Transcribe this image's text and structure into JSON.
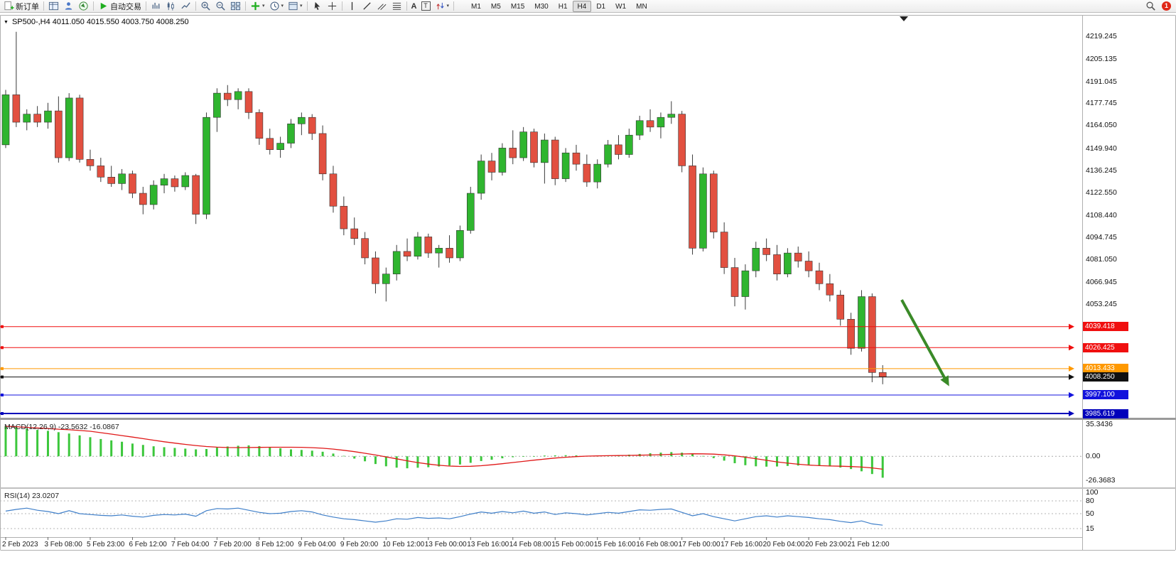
{
  "colors": {
    "toolbar_bg": "#f0f0f0",
    "chart_bg": "#ffffff",
    "border": "#b0b0b0",
    "candle_up": "#2fb52f",
    "candle_down": "#e25040",
    "wick": "#3a3a3a",
    "macd_bar": "#3cc73c",
    "macd_signal": "#e01818",
    "rsi_line": "#3f7fc9",
    "level_red": "#f00f0f",
    "level_orange": "#ff9900",
    "level_blue": "#1212dd",
    "level_blue_bold": "#0000bb",
    "price_line": "#101010",
    "arrow_green": "#3a8a28",
    "axis_text": "#111111",
    "badge_red": "#e02818",
    "autotrade_green": "#1fae1f"
  },
  "toolbar": {
    "new_order_label": "新订单",
    "autotrade_label": "自动交易",
    "text_tool_glyph": "A",
    "label_tool_glyph": "T",
    "timeframes": [
      "M1",
      "M5",
      "M15",
      "M30",
      "H1",
      "H4",
      "D1",
      "W1",
      "MN"
    ],
    "active_timeframe": "H4",
    "notification_count": "1"
  },
  "chart": {
    "title": "SP500-,H4 4011.050 4015.550 4003.750 4008.250",
    "symbol": "SP500-",
    "period": "H4",
    "ohlc_current": {
      "open": "4011.050",
      "high": "4015.550",
      "low": "4003.750",
      "close": "4008.250"
    }
  },
  "indicators": {
    "macd_label": "MACD(12,26,9) -23.5632 -16.0867",
    "rsi_label": "RSI(14) 23.0207"
  },
  "chart_data": {
    "type": "candlestick",
    "title": "SP500- H4",
    "price_axis": {
      "min": 3983,
      "max": 4232,
      "labels": [
        "4219.245",
        "4205.135",
        "4191.045",
        "4177.745",
        "4164.050",
        "4149.940",
        "4136.245",
        "4122.550",
        "4108.440",
        "4094.745",
        "4081.050",
        "4066.945",
        "4053.245"
      ]
    },
    "time_axis": {
      "labels": [
        "2 Feb 2023",
        "3 Feb 08:00",
        "5 Feb 23:00",
        "6 Feb 12:00",
        "7 Feb 04:00",
        "7 Feb 20:00",
        "8 Feb 12:00",
        "9 Feb 04:00",
        "9 Feb 20:00",
        "10 Feb 12:00",
        "13 Feb 00:00",
        "13 Feb 16:00",
        "14 Feb 08:00",
        "15 Feb 00:00",
        "15 Feb 16:00",
        "16 Feb 08:00",
        "17 Feb 00:00",
        "17 Feb 16:00",
        "20 Feb 04:00",
        "20 Feb 23:00",
        "21 Feb 12:00"
      ]
    },
    "ohlc": [
      [
        4152,
        4186,
        4150,
        4183
      ],
      [
        4183,
        4222,
        4163,
        4166
      ],
      [
        4166,
        4174,
        4161,
        4171
      ],
      [
        4171,
        4176,
        4163,
        4166
      ],
      [
        4166,
        4178,
        4162,
        4173
      ],
      [
        4173,
        4182,
        4141,
        4144
      ],
      [
        4144,
        4184,
        4142,
        4181
      ],
      [
        4181,
        4183,
        4141,
        4143
      ],
      [
        4143,
        4149,
        4136,
        4139
      ],
      [
        4139,
        4144,
        4129,
        4132
      ],
      [
        4132,
        4139,
        4126,
        4128
      ],
      [
        4128,
        4137,
        4124,
        4134
      ],
      [
        4134,
        4136,
        4119,
        4122
      ],
      [
        4122,
        4126,
        4109,
        4115
      ],
      [
        4115,
        4130,
        4112,
        4127
      ],
      [
        4127,
        4134,
        4122,
        4131
      ],
      [
        4131,
        4133,
        4123,
        4126
      ],
      [
        4126,
        4135,
        4124,
        4133
      ],
      [
        4133,
        4134,
        4103,
        4109
      ],
      [
        4109,
        4172,
        4106,
        4169
      ],
      [
        4169,
        4187,
        4160,
        4184
      ],
      [
        4184,
        4189,
        4176,
        4180
      ],
      [
        4180,
        4187,
        4174,
        4185
      ],
      [
        4185,
        4187,
        4168,
        4172
      ],
      [
        4172,
        4174,
        4152,
        4156
      ],
      [
        4156,
        4162,
        4146,
        4149
      ],
      [
        4149,
        4157,
        4144,
        4153
      ],
      [
        4153,
        4168,
        4150,
        4165
      ],
      [
        4165,
        4172,
        4158,
        4169
      ],
      [
        4169,
        4171,
        4155,
        4159
      ],
      [
        4159,
        4164,
        4130,
        4134
      ],
      [
        4134,
        4139,
        4110,
        4114
      ],
      [
        4114,
        4120,
        4096,
        4100
      ],
      [
        4100,
        4107,
        4090,
        4094
      ],
      [
        4094,
        4098,
        4078,
        4082
      ],
      [
        4082,
        4086,
        4060,
        4066
      ],
      [
        4066,
        4076,
        4055,
        4072
      ],
      [
        4072,
        4090,
        4068,
        4086
      ],
      [
        4086,
        4094,
        4080,
        4083
      ],
      [
        4083,
        4098,
        4081,
        4095
      ],
      [
        4095,
        4097,
        4082,
        4085
      ],
      [
        4085,
        4090,
        4076,
        4088
      ],
      [
        4088,
        4096,
        4079,
        4082
      ],
      [
        4082,
        4102,
        4080,
        4099
      ],
      [
        4099,
        4126,
        4097,
        4122
      ],
      [
        4122,
        4146,
        4118,
        4142
      ],
      [
        4142,
        4147,
        4130,
        4135
      ],
      [
        4135,
        4153,
        4133,
        4150
      ],
      [
        4150,
        4161,
        4140,
        4144
      ],
      [
        4144,
        4163,
        4142,
        4160
      ],
      [
        4160,
        4162,
        4138,
        4141
      ],
      [
        4141,
        4159,
        4128,
        4155
      ],
      [
        4155,
        4157,
        4127,
        4131
      ],
      [
        4131,
        4150,
        4129,
        4147
      ],
      [
        4147,
        4152,
        4136,
        4140
      ],
      [
        4140,
        4146,
        4126,
        4129
      ],
      [
        4129,
        4143,
        4125,
        4140
      ],
      [
        4140,
        4155,
        4138,
        4152
      ],
      [
        4152,
        4158,
        4143,
        4146
      ],
      [
        4146,
        4162,
        4144,
        4158
      ],
      [
        4158,
        4170,
        4155,
        4167
      ],
      [
        4167,
        4174,
        4160,
        4163
      ],
      [
        4163,
        4172,
        4156,
        4169
      ],
      [
        4169,
        4179,
        4165,
        4171
      ],
      [
        4171,
        4173,
        4135,
        4139
      ],
      [
        4139,
        4146,
        4084,
        4088
      ],
      [
        4088,
        4138,
        4086,
        4134
      ],
      [
        4134,
        4136,
        4094,
        4098
      ],
      [
        4098,
        4104,
        4072,
        4076
      ],
      [
        4076,
        4082,
        4052,
        4058
      ],
      [
        4058,
        4078,
        4050,
        4074
      ],
      [
        4074,
        4092,
        4070,
        4088
      ],
      [
        4088,
        4094,
        4080,
        4084
      ],
      [
        4084,
        4090,
        4068,
        4072
      ],
      [
        4072,
        4088,
        4070,
        4085
      ],
      [
        4085,
        4089,
        4076,
        4080
      ],
      [
        4080,
        4086,
        4070,
        4074
      ],
      [
        4074,
        4079,
        4062,
        4066
      ],
      [
        4066,
        4072,
        4055,
        4059
      ],
      [
        4059,
        4062,
        4040,
        4044
      ],
      [
        4044,
        4048,
        4022,
        4026
      ],
      [
        4026,
        4062,
        4024,
        4058
      ],
      [
        4058,
        4060,
        4005,
        4011
      ],
      [
        4011.05,
        4015.55,
        4003.75,
        4008.25
      ]
    ],
    "levels": [
      {
        "price": 4039.418,
        "label": "4039.418",
        "color": "red",
        "width": 1
      },
      {
        "price": 4026.425,
        "label": "4026.425",
        "color": "red",
        "width": 1
      },
      {
        "price": 4013.433,
        "label": "4013.433",
        "color": "orange",
        "width": 1
      },
      {
        "price": 4008.25,
        "label": "4008.250",
        "color": "black",
        "width": 1,
        "is_current_price": true
      },
      {
        "price": 3997.1,
        "label": "3997.100",
        "color": "blue",
        "width": 1
      },
      {
        "price": 3985.619,
        "label": "3985.619",
        "color": "blue_bold",
        "width": 2
      }
    ],
    "annotation_arrow": {
      "start_bar": 84.8,
      "start_price": 4056,
      "end_bar": 89,
      "end_price": 4006,
      "color": "green"
    },
    "macd": {
      "name": "MACD(12,26,9)",
      "value_main": "-23.5632",
      "value_signal": "-16.0867",
      "axis_labels": [
        "35.3436",
        "0.00",
        "-26.3683"
      ],
      "scale_max": 35.3436,
      "scale_min": -26.3683,
      "hist": [
        33,
        32,
        30.5,
        29,
        28,
        26.5,
        25,
        23,
        21,
        19,
        17.5,
        16,
        14,
        12.5,
        11,
        10,
        9.2,
        8.4,
        7.6,
        8,
        9.5,
        10.8,
        11.6,
        12,
        11.2,
        10.2,
        8.8,
        7.6,
        7,
        6.2,
        5,
        3,
        0.5,
        -2.5,
        -5.5,
        -8.5,
        -11,
        -12.5,
        -13.2,
        -12.6,
        -12,
        -11.2,
        -10.2,
        -9,
        -7.2,
        -5.2,
        -3.8,
        -2.2,
        -1,
        -0.2,
        0.2,
        0.8,
        1,
        1.2,
        1,
        0.6,
        0.4,
        0.8,
        1.2,
        1.8,
        2.6,
        3.4,
        4,
        4.6,
        4,
        2.4,
        0.4,
        -2,
        -4.8,
        -7.6,
        -9.8,
        -11,
        -11.4,
        -11.2,
        -10.6,
        -10.2,
        -10,
        -10.4,
        -11.2,
        -12.4,
        -14,
        -16.5,
        -19.5,
        -23.56
      ]
    },
    "rsi": {
      "name": "RSI(14)",
      "value": "23.0207",
      "axis_labels": [
        "100",
        "80",
        "50",
        "15"
      ],
      "levels": [
        80,
        50,
        15
      ],
      "series": [
        56,
        60,
        63,
        58,
        55,
        50,
        57,
        50,
        48,
        46,
        45,
        47,
        44,
        42,
        46,
        48,
        47,
        49,
        44,
        57,
        62,
        61,
        63,
        58,
        53,
        50,
        51,
        55,
        57,
        54,
        47,
        42,
        38,
        36,
        33,
        30,
        33,
        38,
        37,
        41,
        39,
        40,
        38,
        43,
        49,
        54,
        51,
        55,
        52,
        56,
        51,
        54,
        48,
        52,
        50,
        47,
        50,
        53,
        51,
        55,
        59,
        58,
        60,
        61,
        53,
        45,
        50,
        43,
        38,
        33,
        38,
        43,
        45,
        42,
        45,
        43,
        41,
        38,
        36,
        32,
        29,
        33,
        26,
        23.02
      ]
    }
  }
}
